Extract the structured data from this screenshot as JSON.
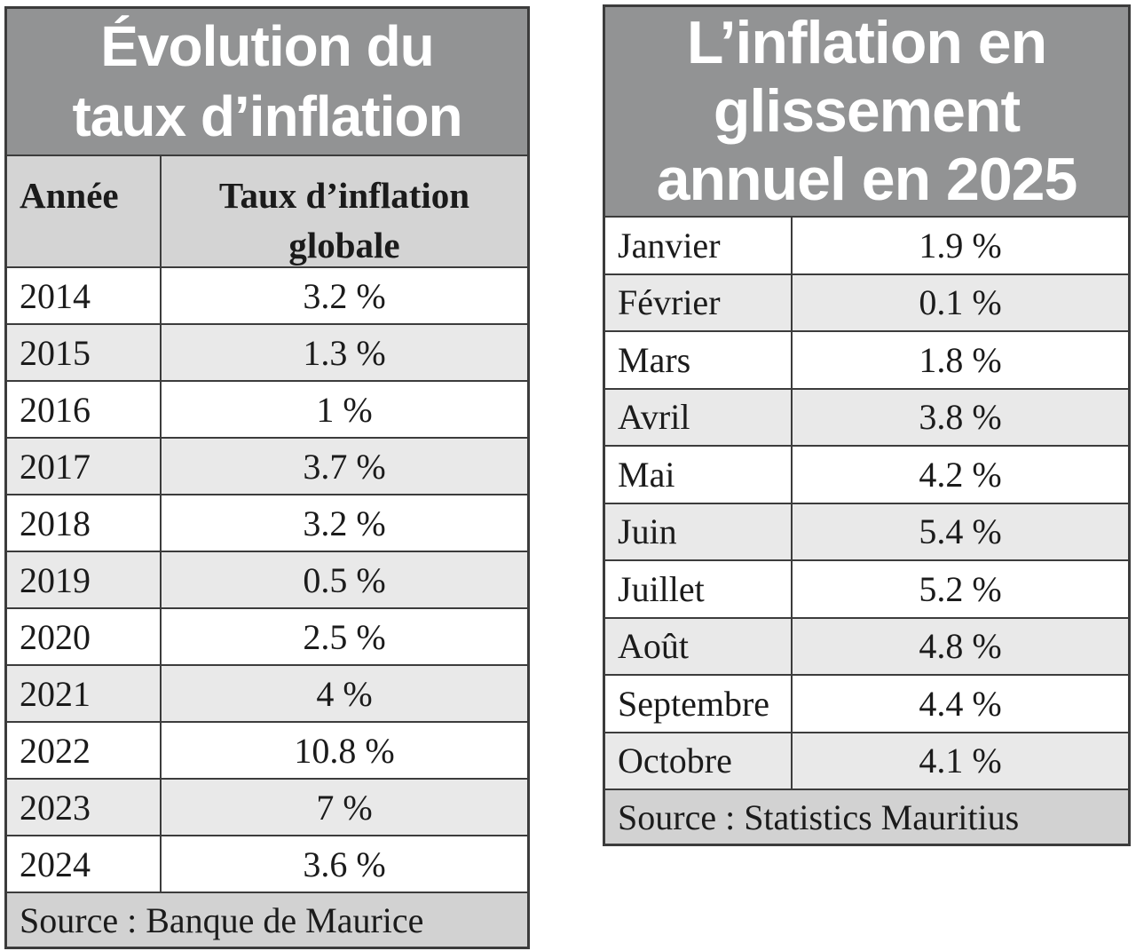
{
  "colors": {
    "title_background": "#929394",
    "title_text": "#ffffff",
    "header_row_background": "#d4d4d4",
    "stripe_row_background": "#e9e9e9",
    "source_row_background": "#d2d2d2",
    "border": "#3c3c3c",
    "body_text": "#1b1b1b"
  },
  "left_table": {
    "title_lines": [
      "Évolution du",
      "taux d’inflation"
    ],
    "col_year": "Année",
    "col_value": "Taux d’inflation globale",
    "rows": [
      {
        "label": "2014",
        "value": "3.2 %"
      },
      {
        "label": "2015",
        "value": "1.3 %"
      },
      {
        "label": "2016",
        "value": "1 %"
      },
      {
        "label": "2017",
        "value": "3.7 %"
      },
      {
        "label": "2018",
        "value": "3.2 %"
      },
      {
        "label": "2019",
        "value": "0.5 %"
      },
      {
        "label": "2020",
        "value": "2.5 %"
      },
      {
        "label": "2021",
        "value": "4 %"
      },
      {
        "label": "2022",
        "value": "10.8 %"
      },
      {
        "label": "2023",
        "value": "7 %"
      },
      {
        "label": "2024",
        "value": "3.6 %"
      }
    ],
    "source": "Source : Banque de Maurice"
  },
  "right_table": {
    "title_lines": [
      "L’inflation en",
      "glissement",
      "annuel en 2025"
    ],
    "rows": [
      {
        "label": "Janvier",
        "value": "1.9 %"
      },
      {
        "label": "Février",
        "value": "0.1 %"
      },
      {
        "label": "Mars",
        "value": "1.8 %"
      },
      {
        "label": "Avril",
        "value": "3.8 %"
      },
      {
        "label": "Mai",
        "value": "4.2 %"
      },
      {
        "label": "Juin",
        "value": "5.4 %"
      },
      {
        "label": "Juillet",
        "value": "5.2 %"
      },
      {
        "label": "Août",
        "value": "4.8 %"
      },
      {
        "label": "Septembre",
        "value": "4.4 %"
      },
      {
        "label": "Octobre",
        "value": "4.1 %"
      }
    ],
    "source": "Source : Statistics Mauritius"
  },
  "chart_data": [
    {
      "type": "table",
      "title": "Évolution du taux d’inflation",
      "columns": [
        "Année",
        "Taux d’inflation globale"
      ],
      "x": [
        "2014",
        "2015",
        "2016",
        "2017",
        "2018",
        "2019",
        "2020",
        "2021",
        "2022",
        "2023",
        "2024"
      ],
      "values_percent": [
        3.2,
        1.3,
        1,
        3.7,
        3.2,
        0.5,
        2.5,
        4,
        10.8,
        7,
        3.6
      ],
      "source": "Source : Banque de Maurice"
    },
    {
      "type": "table",
      "title": "L’inflation en glissement annuel en 2025",
      "x": [
        "Janvier",
        "Février",
        "Mars",
        "Avril",
        "Mai",
        "Juin",
        "Juillet",
        "Août",
        "Septembre",
        "Octobre"
      ],
      "values_percent": [
        1.9,
        0.1,
        1.8,
        3.8,
        4.2,
        5.4,
        5.2,
        4.8,
        4.4,
        4.1
      ],
      "source": "Source : Statistics Mauritius"
    }
  ]
}
